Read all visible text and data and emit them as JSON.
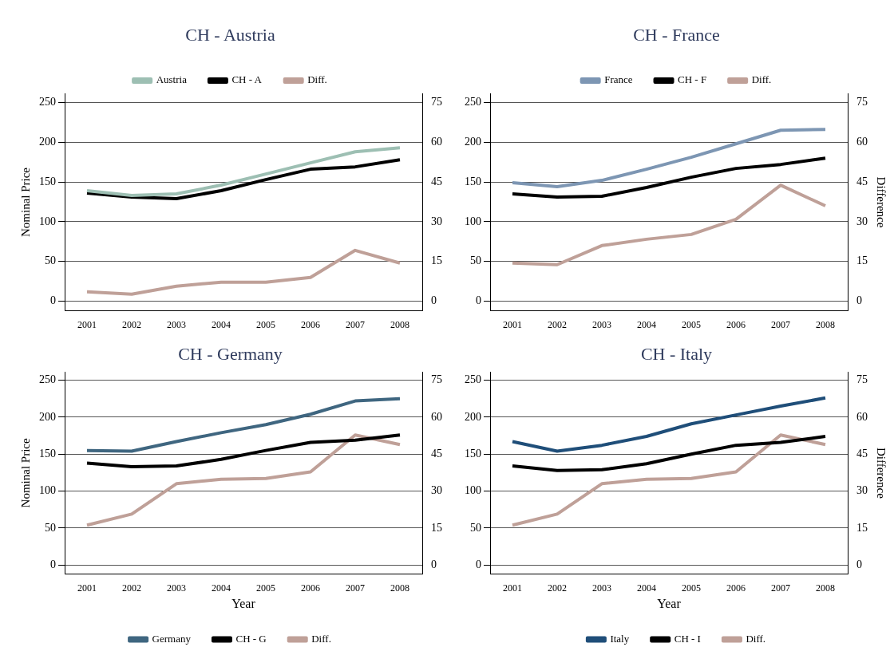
{
  "chart_data": [
    {
      "type": "line",
      "title": "CH - Austria",
      "ylabel": "Nominal Price",
      "categories": [
        "2001",
        "2002",
        "2003",
        "2004",
        "2005",
        "2006",
        "2007",
        "2008"
      ],
      "series": [
        {
          "name": "Austria",
          "color": "#9dbfb3",
          "values": [
            139,
            133,
            135,
            146,
            160,
            174,
            188,
            193
          ]
        },
        {
          "name": "CH - A",
          "color": "#000000",
          "values": [
            136,
            131,
            129,
            139,
            153,
            166,
            169,
            178
          ]
        },
        {
          "name": "Diff.",
          "color": "#bfa098",
          "axis": "y2",
          "values": [
            3.6,
            2.7,
            5.7,
            7.2,
            7.2,
            9,
            19.2,
            14.4
          ]
        }
      ],
      "ylim": [
        -12,
        261
      ],
      "yticks": [
        0,
        50,
        100,
        150,
        200,
        250
      ],
      "y2lim": [
        -3.6,
        78.3
      ],
      "y2ticks": [
        0,
        15,
        30,
        45,
        60,
        75
      ],
      "grid": "y",
      "legend": "top"
    },
    {
      "type": "line",
      "title": "CH - France",
      "y2label": "Difference",
      "categories": [
        "2001",
        "2002",
        "2003",
        "2004",
        "2005",
        "2006",
        "2007",
        "2008"
      ],
      "series": [
        {
          "name": "France",
          "color": "#7d96b3",
          "values": [
            149,
            144,
            152,
            166,
            181,
            198,
            215,
            216
          ]
        },
        {
          "name": "CH - F",
          "color": "#000000",
          "values": [
            135,
            131,
            132,
            143,
            156,
            167,
            172,
            180
          ]
        },
        {
          "name": "Diff.",
          "color": "#bfa098",
          "axis": "y2",
          "values": [
            14.4,
            13.8,
            21,
            23.4,
            25.2,
            30.9,
            43.8,
            36
          ]
        }
      ],
      "ylim": [
        -12,
        261
      ],
      "yticks": [
        0,
        50,
        100,
        150,
        200,
        250
      ],
      "y2lim": [
        -3.6,
        78.3
      ],
      "y2ticks": [
        0,
        15,
        30,
        45,
        60,
        75
      ],
      "grid": "y",
      "legend": "top"
    },
    {
      "type": "line",
      "title": "CH - Germany",
      "xlabel": "Year",
      "ylabel": "Nominal Price",
      "categories": [
        "2001",
        "2002",
        "2003",
        "2004",
        "2005",
        "2006",
        "2007",
        "2008"
      ],
      "series": [
        {
          "name": "Germany",
          "color": "#3f6680",
          "values": [
            155,
            154,
            167,
            179,
            190,
            204,
            222,
            225
          ]
        },
        {
          "name": "CH - G",
          "color": "#000000",
          "values": [
            138,
            133,
            134,
            143,
            155,
            166,
            169,
            176
          ]
        },
        {
          "name": "Diff.",
          "color": "#bfa098",
          "axis": "y2",
          "values": [
            16.2,
            20.7,
            33,
            34.8,
            35.1,
            37.8,
            52.8,
            48.9
          ]
        }
      ],
      "ylim": [
        -12,
        261
      ],
      "yticks": [
        0,
        50,
        100,
        150,
        200,
        250
      ],
      "y2lim": [
        -3.6,
        78.3
      ],
      "y2ticks": [
        0,
        15,
        30,
        45,
        60,
        75
      ],
      "grid": "y",
      "legend": "bottom"
    },
    {
      "type": "line",
      "title": "CH - Italy",
      "xlabel": "Year",
      "y2label": "Difference",
      "categories": [
        "2001",
        "2002",
        "2003",
        "2004",
        "2005",
        "2006",
        "2007",
        "2008"
      ],
      "series": [
        {
          "name": "Italy",
          "color": "#1f4e79",
          "values": [
            167,
            154,
            162,
            174,
            191,
            203,
            215,
            226
          ]
        },
        {
          "name": "CH - I",
          "color": "#000000",
          "values": [
            134,
            128,
            129,
            137,
            150,
            162,
            166,
            174
          ]
        },
        {
          "name": "Diff.",
          "color": "#bfa098",
          "axis": "y2",
          "values": [
            16.2,
            20.7,
            33,
            34.8,
            35.1,
            37.8,
            52.8,
            48.9
          ]
        }
      ],
      "ylim": [
        -12,
        261
      ],
      "yticks": [
        0,
        50,
        100,
        150,
        200,
        250
      ],
      "y2lim": [
        -3.6,
        78.3
      ],
      "y2ticks": [
        0,
        15,
        30,
        45,
        60,
        75
      ],
      "grid": "y",
      "legend": "bottom"
    }
  ]
}
